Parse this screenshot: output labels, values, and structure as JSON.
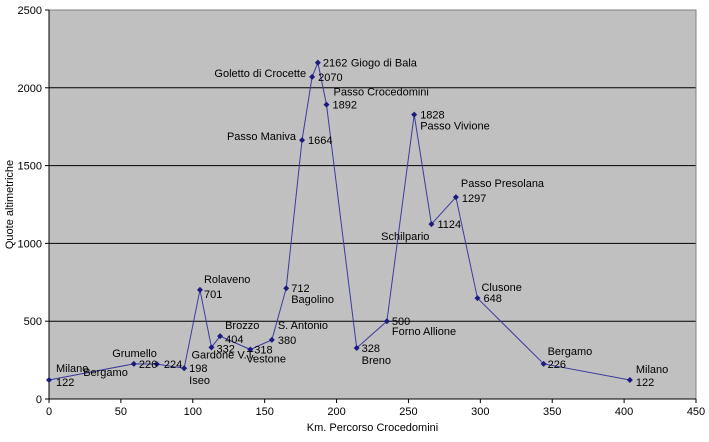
{
  "chart_data": {
    "type": "line",
    "xlabel": "Km. Percorso Crocedomini",
    "ylabel": "Quote altimetriche",
    "xlim": [
      0,
      450
    ],
    "ylim": [
      0,
      2500
    ],
    "x_ticks": [
      0,
      50,
      100,
      150,
      200,
      250,
      300,
      350,
      400,
      450
    ],
    "y_ticks": [
      0,
      500,
      1000,
      1500,
      2000,
      2500
    ],
    "grid": "horizontal",
    "plot_background": "#c0c0c0",
    "line_color": "#3a3aa0",
    "marker_color": "#1a1a80",
    "series": [
      {
        "points": [
          {
            "x": 0,
            "y": 122,
            "name": "Milano",
            "value": "122"
          },
          {
            "x": 59,
            "y": 226,
            "name": "Bergamo",
            "value": "226"
          },
          {
            "x": 75,
            "y": 224,
            "name": "Grumello",
            "value": "224"
          },
          {
            "x": 94,
            "y": 198,
            "name": "Iseo",
            "value": "198"
          },
          {
            "x": 105,
            "y": 701,
            "name": "Rolaveno",
            "value": "701"
          },
          {
            "x": 113,
            "y": 332,
            "name": "Gardone V.T.",
            "value": "332"
          },
          {
            "x": 119,
            "y": 404,
            "name": "Brozzo",
            "value": "404"
          },
          {
            "x": 140,
            "y": 318,
            "name": "Vestone",
            "value": "318"
          },
          {
            "x": 155,
            "y": 380,
            "name": "S. Antonio",
            "value": "380"
          },
          {
            "x": 165,
            "y": 712,
            "name": "Bagolino",
            "value": "712"
          },
          {
            "x": 176,
            "y": 1664,
            "name": "Passo Maniva",
            "value": "1664"
          },
          {
            "x": 183,
            "y": 2070,
            "name": "Goletto di Crocette",
            "value": "2070"
          },
          {
            "x": 187,
            "y": 2162,
            "name": "Giogo di Bala",
            "value": "2162"
          },
          {
            "x": 193,
            "y": 1892,
            "name": "Passo Crocedomini",
            "value": "1892"
          },
          {
            "x": 214,
            "y": 328,
            "name": "Breno",
            "value": "328"
          },
          {
            "x": 235,
            "y": 500,
            "name": "Forno Allione",
            "value": "500"
          },
          {
            "x": 254,
            "y": 1828,
            "name": "Passo Vivione",
            "value": "1828"
          },
          {
            "x": 266,
            "y": 1124,
            "name": "Schilpario",
            "value": "1124"
          },
          {
            "x": 283,
            "y": 1297,
            "name": "Passo Presolana",
            "value": "1297"
          },
          {
            "x": 298,
            "y": 648,
            "name": "Clusone",
            "value": "648"
          },
          {
            "x": 344,
            "y": 226,
            "name": "Bergamo",
            "value": "226"
          },
          {
            "x": 404,
            "y": 122,
            "name": "Milano",
            "value": "122"
          }
        ]
      }
    ]
  }
}
